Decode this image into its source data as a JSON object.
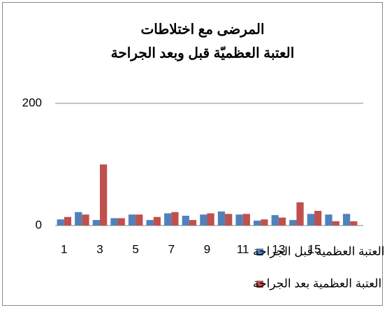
{
  "chart_data": {
    "type": "bar",
    "title": [
      "المرضى مع اختلاطات",
      "العتبة العظميّة قبل وبعد الجراحة"
    ],
    "categories": [
      "1",
      null,
      "3",
      null,
      "5",
      null,
      "7",
      null,
      "9",
      null,
      "11",
      null,
      "13",
      null,
      "15",
      null,
      null
    ],
    "series": [
      {
        "name": "العتبة العظمية قبل الجراحة",
        "color": "#4f81bd",
        "values": [
          10,
          22,
          9,
          12,
          18,
          9,
          20,
          16,
          18,
          23,
          18,
          8,
          17,
          9,
          19,
          18,
          19
        ]
      },
      {
        "name": "العتبة العظمية بعد الجراحة",
        "color": "#c0504d",
        "values": [
          14,
          18,
          100,
          12,
          18,
          14,
          22,
          9,
          20,
          19,
          19,
          10,
          13,
          38,
          24,
          7,
          7
        ]
      }
    ],
    "ylim": [
      0,
      200
    ],
    "yticks": [
      0,
      200
    ],
    "grid": true
  }
}
